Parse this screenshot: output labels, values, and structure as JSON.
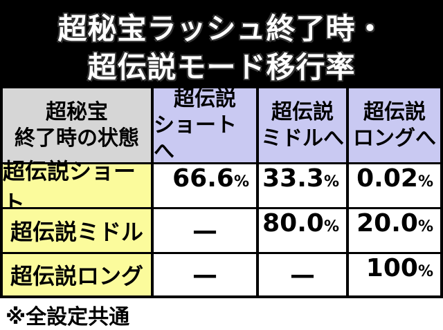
{
  "header": {
    "title_lines": [
      "超秘宝ラッシュ終了時・",
      "超伝説モード移行率"
    ]
  },
  "table": {
    "corner": [
      "超秘宝",
      "終了時の状態"
    ],
    "columns": [
      [
        "超伝説",
        "ショートへ"
      ],
      [
        "超伝説",
        "ミドルへ"
      ],
      [
        "超伝説",
        "ロングへ"
      ]
    ],
    "rows": [
      {
        "label": "超伝説ショート",
        "cells": [
          {
            "value": "66.6",
            "unit": "%"
          },
          {
            "value": "33.3",
            "unit": "%"
          },
          {
            "value": "0.02",
            "unit": "%"
          }
        ]
      },
      {
        "label": "超伝説ミドル",
        "cells": [
          {
            "value": "—"
          },
          {
            "value": "80.0",
            "unit": "%"
          },
          {
            "value": "20.0",
            "unit": "%"
          }
        ]
      },
      {
        "label": "超伝説ロング",
        "cells": [
          {
            "value": "—"
          },
          {
            "value": "—"
          },
          {
            "value": "100",
            "unit": "%"
          }
        ]
      }
    ]
  },
  "footnote": "※全設定共通"
}
